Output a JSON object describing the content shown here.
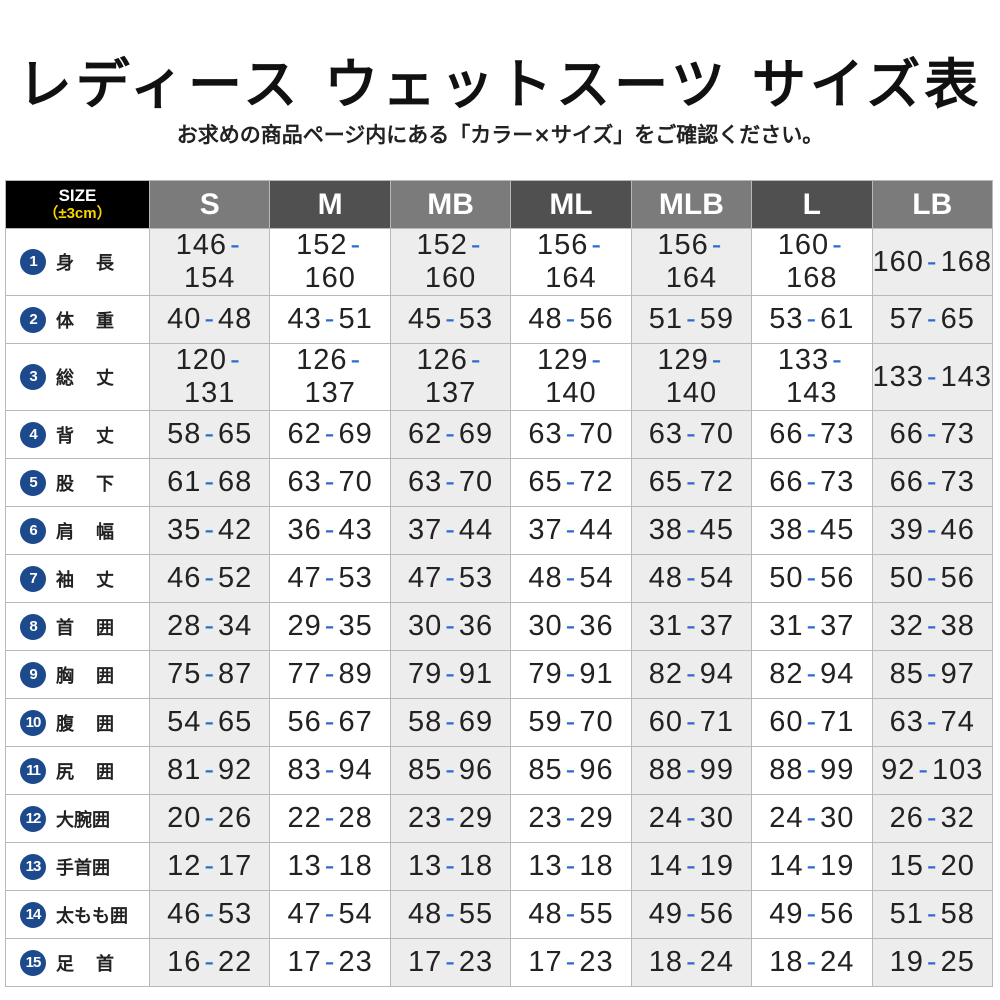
{
  "header": {
    "title": "レディース ウェットスーツ サイズ表",
    "subtitle": "お求めの商品ページ内にある「カラー×サイズ」をご確認ください。"
  },
  "table": {
    "corner": {
      "label": "SIZE",
      "note": "（±3cm）"
    },
    "columns": [
      "S",
      "M",
      "MB",
      "ML",
      "MLB",
      "L",
      "LB"
    ],
    "rows": [
      {
        "num": "1",
        "label": "身長",
        "cells": [
          "146-154",
          "152-160",
          "152-160",
          "156-164",
          "156-164",
          "160-168",
          "160-168"
        ]
      },
      {
        "num": "2",
        "label": "体重",
        "cells": [
          "40-48",
          "43-51",
          "45-53",
          "48-56",
          "51-59",
          "53-61",
          "57-65"
        ]
      },
      {
        "num": "3",
        "label": "総丈",
        "cells": [
          "120-131",
          "126-137",
          "126-137",
          "129-140",
          "129-140",
          "133-143",
          "133-143"
        ]
      },
      {
        "num": "4",
        "label": "背丈",
        "cells": [
          "58-65",
          "62-69",
          "62-69",
          "63-70",
          "63-70",
          "66-73",
          "66-73"
        ]
      },
      {
        "num": "5",
        "label": "股下",
        "cells": [
          "61-68",
          "63-70",
          "63-70",
          "65-72",
          "65-72",
          "66-73",
          "66-73"
        ]
      },
      {
        "num": "6",
        "label": "肩幅",
        "cells": [
          "35-42",
          "36-43",
          "37-44",
          "37-44",
          "38-45",
          "38-45",
          "39-46"
        ]
      },
      {
        "num": "7",
        "label": "袖丈",
        "cells": [
          "46-52",
          "47-53",
          "47-53",
          "48-54",
          "48-54",
          "50-56",
          "50-56"
        ]
      },
      {
        "num": "8",
        "label": "首囲",
        "cells": [
          "28-34",
          "29-35",
          "30-36",
          "30-36",
          "31-37",
          "31-37",
          "32-38"
        ]
      },
      {
        "num": "9",
        "label": "胸囲",
        "cells": [
          "75-87",
          "77-89",
          "79-91",
          "79-91",
          "82-94",
          "82-94",
          "85-97"
        ]
      },
      {
        "num": "10",
        "label": "腹囲",
        "cells": [
          "54-65",
          "56-67",
          "58-69",
          "59-70",
          "60-71",
          "60-71",
          "63-74"
        ]
      },
      {
        "num": "11",
        "label": "尻囲",
        "cells": [
          "81-92",
          "83-94",
          "85-96",
          "85-96",
          "88-99",
          "88-99",
          "92-103"
        ]
      },
      {
        "num": "12",
        "label": "大腕囲",
        "cells": [
          "20-26",
          "22-28",
          "23-29",
          "23-29",
          "24-30",
          "24-30",
          "26-32"
        ]
      },
      {
        "num": "13",
        "label": "手首囲",
        "cells": [
          "12-17",
          "13-18",
          "13-18",
          "13-18",
          "14-19",
          "14-19",
          "15-20"
        ]
      },
      {
        "num": "14",
        "label": "太もも囲",
        "cells": [
          "46-53",
          "47-54",
          "48-55",
          "48-55",
          "49-56",
          "49-56",
          "51-58"
        ]
      },
      {
        "num": "15",
        "label": "足首",
        "cells": [
          "16-22",
          "17-23",
          "17-23",
          "17-23",
          "18-24",
          "18-24",
          "19-25"
        ]
      }
    ]
  }
}
